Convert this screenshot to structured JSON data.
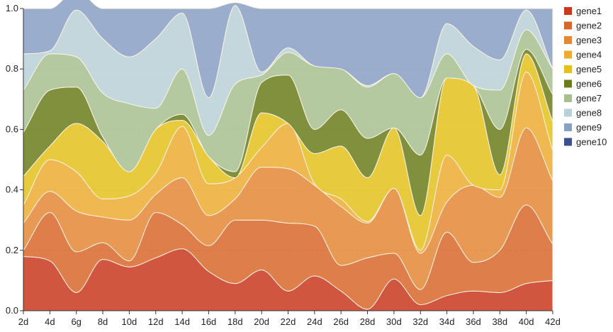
{
  "chart_data": {
    "type": "area",
    "stacked": true,
    "normalized": true,
    "title": "",
    "xlabel": "",
    "ylabel": "",
    "categories": [
      "2d",
      "4d",
      "6g",
      "8d",
      "10d",
      "12d",
      "14d",
      "16d",
      "18d",
      "20d",
      "22d",
      "24d",
      "26d",
      "28d",
      "30d",
      "32d",
      "34d",
      "36d",
      "38d",
      "40d",
      "42d"
    ],
    "ylim": [
      0,
      1.0
    ],
    "y_ticks": [
      "0.0",
      "0.2",
      "0.4",
      "0.6",
      "0.8",
      "1.0"
    ],
    "grid": "horizontal dashed",
    "legend_position": "right",
    "series": [
      {
        "name": "gene1",
        "color": "#c9381f",
        "values": [
          0.18,
          0.165,
          0.06,
          0.17,
          0.145,
          0.175,
          0.205,
          0.13,
          0.09,
          0.135,
          0.065,
          0.115,
          0.065,
          0.005,
          0.105,
          0.02,
          0.05,
          0.065,
          0.06,
          0.09,
          0.1
        ]
      },
      {
        "name": "gene2",
        "color": "#d8672a",
        "values": [
          0.02,
          0.16,
          0.135,
          0.055,
          0.02,
          0.15,
          0.08,
          0.085,
          0.21,
          0.165,
          0.225,
          0.165,
          0.085,
          0.17,
          0.085,
          0.05,
          0.21,
          0.095,
          0.14,
          0.26,
          0.12
        ]
      },
      {
        "name": "gene3",
        "color": "#e48836",
        "values": [
          0.09,
          0.07,
          0.135,
          0.085,
          0.135,
          0.06,
          0.155,
          0.1,
          0.07,
          0.175,
          0.18,
          0.135,
          0.195,
          0.115,
          0.215,
          0.12,
          0.1,
          0.255,
          0.175,
          0.255,
          0.21
        ]
      },
      {
        "name": "gene4",
        "color": "#edab31",
        "values": [
          0.06,
          0.105,
          0.13,
          0.06,
          0.08,
          0.07,
          0.17,
          0.105,
          0.07,
          0.065,
          0.15,
          0.005,
          0.025,
          0.005,
          0.0,
          0.01,
          0.155,
          0.0,
          0.025,
          0.185,
          0.1
        ]
      },
      {
        "name": "gene5",
        "color": "#e4c11c",
        "values": [
          0.095,
          0.045,
          0.16,
          0.19,
          0.08,
          0.145,
          0.02,
          0.09,
          0.0,
          0.115,
          0.0,
          0.1,
          0.175,
          0.145,
          0.2,
          0.115,
          0.255,
          0.33,
          0.05,
          0.06,
          0.095
        ]
      },
      {
        "name": "gene6",
        "color": "#6b7c1b",
        "values": [
          0.145,
          0.185,
          0.12,
          0.015,
          0.0,
          0.0,
          0.02,
          0.0,
          0.02,
          0.1,
          0.16,
          0.08,
          0.12,
          0.13,
          0.0,
          0.2,
          0.0,
          0.0,
          0.15,
          0.015,
          0.09
        ]
      },
      {
        "name": "gene7",
        "color": "#a7bf8e",
        "values": [
          0.14,
          0.12,
          0.1,
          0.145,
          0.225,
          0.07,
          0.15,
          0.07,
          0.29,
          0.025,
          0.075,
          0.21,
          0.135,
          0.17,
          0.18,
          0.19,
          0.08,
          0.0,
          0.13,
          0.065,
          0.085
        ]
      },
      {
        "name": "gene8",
        "color": "#b8d0d7",
        "values": [
          0.12,
          0.01,
          0.155,
          0.18,
          0.155,
          0.23,
          0.185,
          0.125,
          0.26,
          0.01,
          0.015,
          0.0,
          0.0,
          0.005,
          0.0,
          0.0,
          0.1,
          0.13,
          0.1,
          0.065,
          0.0
        ]
      },
      {
        "name": "gene9",
        "color": "#8a9fc4",
        "values": [
          0.15,
          0.14,
          0.065,
          0.1,
          0.16,
          0.1,
          0.015,
          0.295,
          0.01,
          0.21,
          0.13,
          0.19,
          0.2,
          0.255,
          0.215,
          0.295,
          0.05,
          0.125,
          0.17,
          0.005,
          0.2
        ]
      },
      {
        "name": "gene10",
        "color": "#3d4f92",
        "values": [
          0,
          0,
          0,
          0,
          0,
          0,
          0,
          0,
          0,
          0,
          0,
          0,
          0,
          0,
          0,
          0,
          0,
          0,
          0,
          0,
          0
        ]
      }
    ]
  }
}
